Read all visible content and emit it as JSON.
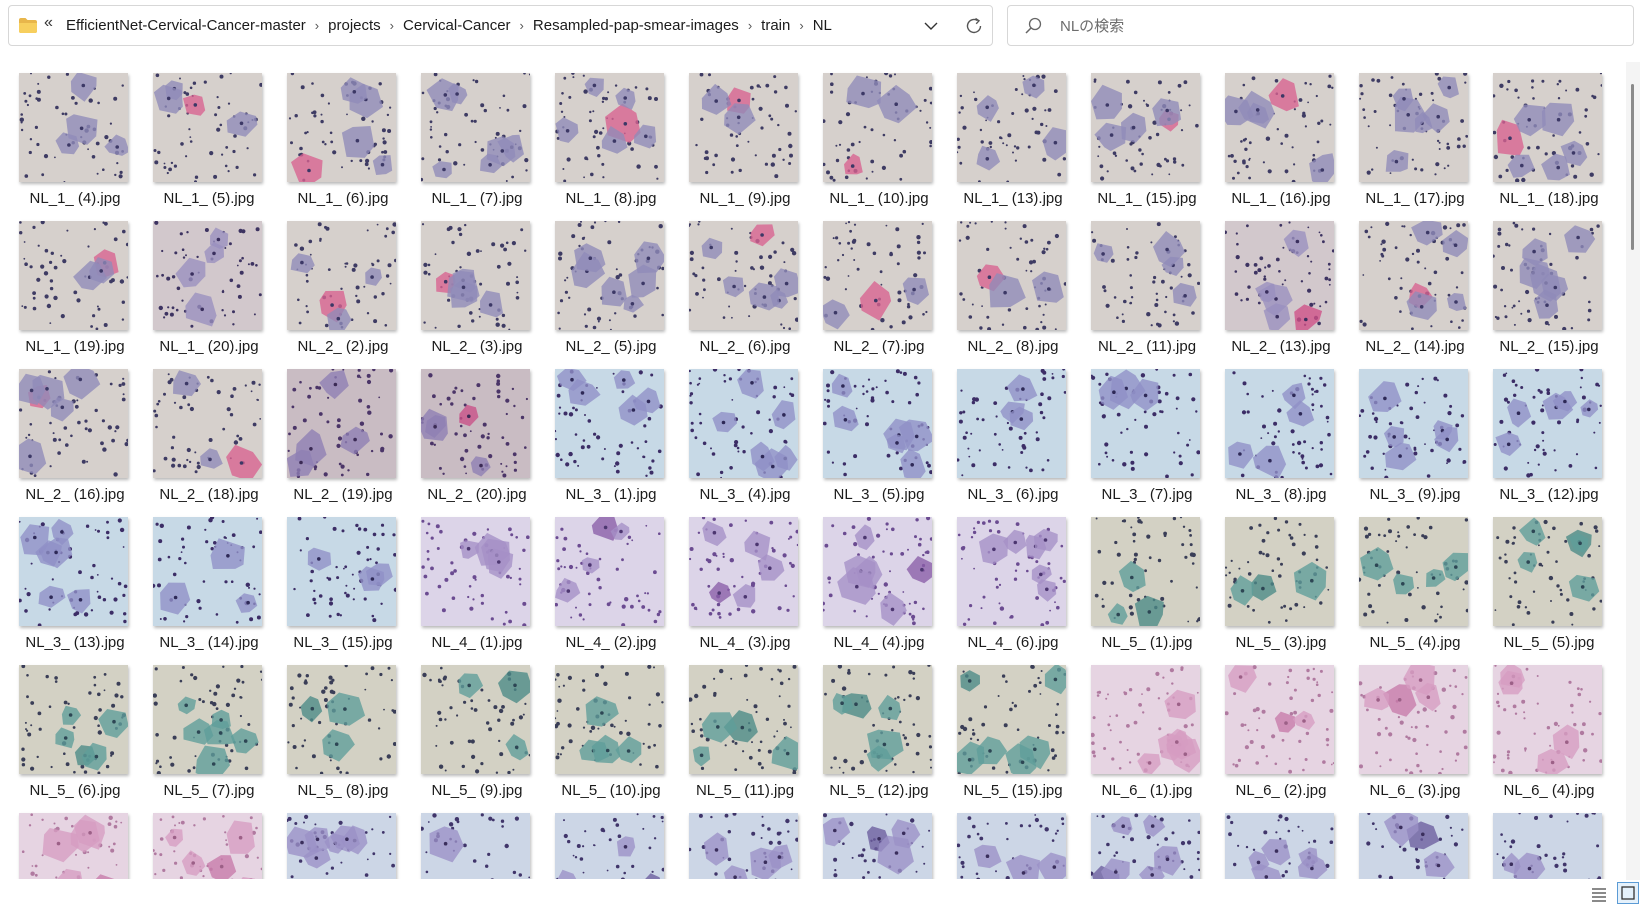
{
  "address_bar": {
    "overflow_label": "«",
    "breadcrumbs": [
      "EfficientNet-Cervical-Cancer-master",
      "projects",
      "Cervical-Cancer",
      "Resampled-pap-smear-images",
      "train",
      "NL"
    ],
    "separator": "›"
  },
  "search": {
    "placeholder": "NLの検索",
    "value": ""
  },
  "palettes": {
    "gray-pink": {
      "bg": "#d6d0cc",
      "cell": "#8f8bb8",
      "accent": "#d9628f",
      "nucleus": "#3c3866",
      "dots": "#3e3b63"
    },
    "pink-dense": {
      "bg": "#d2c8cc",
      "cell": "#9a8fbf",
      "accent": "#cf4f86",
      "nucleus": "#3a2f5e",
      "dots": "#3d3361"
    },
    "violet-stained": {
      "bg": "#c9bcc3",
      "cell": "#8e7fb4",
      "accent": "#c94f87",
      "nucleus": "#3b2a55",
      "dots": "#4b3568"
    },
    "blue-bg": {
      "bg": "#c7d9e6",
      "cell": "#8f8fc6",
      "accent": "#8f8fc6",
      "nucleus": "#2e2957",
      "dots": "#3c2d66"
    },
    "lilac": {
      "bg": "#dcd4e8",
      "cell": "#a590c7",
      "accent": "#8a5ea8",
      "nucleus": "#4c3670",
      "dots": "#6b4b91"
    },
    "green": {
      "bg": "#d3d1c4",
      "cell": "#5f9e9a",
      "accent": "#4b8a86",
      "nucleus": "#2d4654",
      "dots": "#3a3e57"
    },
    "pink-soft": {
      "bg": "#e6d4e2",
      "cell": "#d69cc2",
      "accent": "#c77aa9",
      "nucleus": "#9c6087",
      "dots": "#b07aa0"
    },
    "blue-violet": {
      "bg": "#ccd6e6",
      "cell": "#9b91c7",
      "accent": "#6b5d9e",
      "nucleus": "#3a2e5c",
      "dots": "#40356a"
    }
  },
  "files": [
    {
      "name": "NL_1_ (4).jpg",
      "palette": "gray-pink"
    },
    {
      "name": "NL_1_ (5).jpg",
      "palette": "gray-pink"
    },
    {
      "name": "NL_1_ (6).jpg",
      "palette": "gray-pink"
    },
    {
      "name": "NL_1_ (7).jpg",
      "palette": "gray-pink"
    },
    {
      "name": "NL_1_ (8).jpg",
      "palette": "gray-pink"
    },
    {
      "name": "NL_1_ (9).jpg",
      "palette": "gray-pink"
    },
    {
      "name": "NL_1_ (10).jpg",
      "palette": "gray-pink"
    },
    {
      "name": "NL_1_ (13).jpg",
      "palette": "gray-pink"
    },
    {
      "name": "NL_1_ (15).jpg",
      "palette": "gray-pink"
    },
    {
      "name": "NL_1_ (16).jpg",
      "palette": "gray-pink"
    },
    {
      "name": "NL_1_ (17).jpg",
      "palette": "gray-pink"
    },
    {
      "name": "NL_1_ (18).jpg",
      "palette": "gray-pink"
    },
    {
      "name": "NL_1_ (19).jpg",
      "palette": "gray-pink"
    },
    {
      "name": "NL_1_ (20).jpg",
      "palette": "pink-dense"
    },
    {
      "name": "NL_2_ (2).jpg",
      "palette": "gray-pink"
    },
    {
      "name": "NL_2_ (3).jpg",
      "palette": "gray-pink"
    },
    {
      "name": "NL_2_ (5).jpg",
      "palette": "gray-pink"
    },
    {
      "name": "NL_2_ (6).jpg",
      "palette": "gray-pink"
    },
    {
      "name": "NL_2_ (7).jpg",
      "palette": "gray-pink"
    },
    {
      "name": "NL_2_ (8).jpg",
      "palette": "gray-pink"
    },
    {
      "name": "NL_2_ (11).jpg",
      "palette": "gray-pink"
    },
    {
      "name": "NL_2_ (13).jpg",
      "palette": "pink-dense"
    },
    {
      "name": "NL_2_ (14).jpg",
      "palette": "gray-pink"
    },
    {
      "name": "NL_2_ (15).jpg",
      "palette": "gray-pink"
    },
    {
      "name": "NL_2_ (16).jpg",
      "palette": "gray-pink"
    },
    {
      "name": "NL_2_ (18).jpg",
      "palette": "gray-pink"
    },
    {
      "name": "NL_2_ (19).jpg",
      "palette": "violet-stained"
    },
    {
      "name": "NL_2_ (20).jpg",
      "palette": "violet-stained"
    },
    {
      "name": "NL_3_ (1).jpg",
      "palette": "blue-bg"
    },
    {
      "name": "NL_3_ (4).jpg",
      "palette": "blue-bg"
    },
    {
      "name": "NL_3_ (5).jpg",
      "palette": "blue-bg"
    },
    {
      "name": "NL_3_ (6).jpg",
      "palette": "blue-bg"
    },
    {
      "name": "NL_3_ (7).jpg",
      "palette": "blue-bg"
    },
    {
      "name": "NL_3_ (8).jpg",
      "palette": "blue-bg"
    },
    {
      "name": "NL_3_ (9).jpg",
      "palette": "blue-bg"
    },
    {
      "name": "NL_3_ (12).jpg",
      "palette": "blue-bg"
    },
    {
      "name": "NL_3_ (13).jpg",
      "palette": "blue-bg"
    },
    {
      "name": "NL_3_ (14).jpg",
      "palette": "blue-bg"
    },
    {
      "name": "NL_3_ (15).jpg",
      "palette": "blue-bg"
    },
    {
      "name": "NL_4_ (1).jpg",
      "palette": "lilac"
    },
    {
      "name": "NL_4_ (2).jpg",
      "palette": "lilac"
    },
    {
      "name": "NL_4_ (3).jpg",
      "palette": "lilac"
    },
    {
      "name": "NL_4_ (4).jpg",
      "palette": "lilac"
    },
    {
      "name": "NL_4_ (6).jpg",
      "palette": "lilac"
    },
    {
      "name": "NL_5_ (1).jpg",
      "palette": "green"
    },
    {
      "name": "NL_5_ (3).jpg",
      "palette": "green"
    },
    {
      "name": "NL_5_ (4).jpg",
      "palette": "green"
    },
    {
      "name": "NL_5_ (5).jpg",
      "palette": "green"
    },
    {
      "name": "NL_5_ (6).jpg",
      "palette": "green"
    },
    {
      "name": "NL_5_ (7).jpg",
      "palette": "green"
    },
    {
      "name": "NL_5_ (8).jpg",
      "palette": "green"
    },
    {
      "name": "NL_5_ (9).jpg",
      "palette": "green"
    },
    {
      "name": "NL_5_ (10).jpg",
      "palette": "green"
    },
    {
      "name": "NL_5_ (11).jpg",
      "palette": "green"
    },
    {
      "name": "NL_5_ (12).jpg",
      "palette": "green"
    },
    {
      "name": "NL_5_ (15).jpg",
      "palette": "green"
    },
    {
      "name": "NL_6_ (1).jpg",
      "palette": "pink-soft"
    },
    {
      "name": "NL_6_ (2).jpg",
      "palette": "pink-soft"
    },
    {
      "name": "NL_6_ (3).jpg",
      "palette": "pink-soft"
    },
    {
      "name": "NL_6_ (4).jpg",
      "palette": "pink-soft"
    },
    {
      "name": "",
      "palette": "pink-soft"
    },
    {
      "name": "",
      "palette": "pink-soft"
    },
    {
      "name": "",
      "palette": "blue-violet"
    },
    {
      "name": "",
      "palette": "blue-violet"
    },
    {
      "name": "",
      "palette": "blue-violet"
    },
    {
      "name": "",
      "palette": "blue-violet"
    },
    {
      "name": "",
      "palette": "blue-violet"
    },
    {
      "name": "",
      "palette": "blue-violet"
    },
    {
      "name": "",
      "palette": "blue-violet"
    },
    {
      "name": "",
      "palette": "blue-violet"
    },
    {
      "name": "",
      "palette": "blue-violet"
    },
    {
      "name": "",
      "palette": "blue-violet"
    }
  ],
  "icons": {
    "folder": "folder-icon",
    "dropdown": "chevron-down-icon",
    "refresh": "refresh-icon",
    "search": "search-icon",
    "details_view": "details-view-icon",
    "thumbnail_view": "large-icons-view-icon"
  }
}
